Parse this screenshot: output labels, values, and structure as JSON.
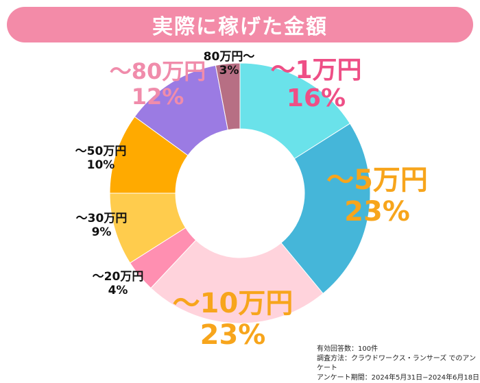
{
  "title": "実際に稼げた金額",
  "chart_data": {
    "type": "pie",
    "donut": true,
    "slices": [
      {
        "label": "～1万円",
        "value": 16,
        "value_label": "16%",
        "color": "#6ae2ea"
      },
      {
        "label": "～5万円",
        "value": 23,
        "value_label": "23%",
        "color": "#45b6d9"
      },
      {
        "label": "～10万円",
        "value": 23,
        "value_label": "23%",
        "color": "#ffd3dc"
      },
      {
        "label": "～20万円",
        "value": 4,
        "value_label": "4%",
        "color": "#ff8fb1"
      },
      {
        "label": "～30万円",
        "value": 9,
        "value_label": "9%",
        "color": "#ffcc4d"
      },
      {
        "label": "～50万円",
        "value": 10,
        "value_label": "10%",
        "color": "#ffaa00"
      },
      {
        "label": "～80万円",
        "value": 12,
        "value_label": "12%",
        "color": "#9b7be3"
      },
      {
        "label": "80万円～",
        "value": 3,
        "value_label": "3%",
        "color": "#b76f84"
      }
    ]
  },
  "footnote": {
    "line1": "有効回答数：100件",
    "line2": "調査方法：クラウドワークス・ランサーズ でのアンケート",
    "line3": "アンケート期間：2024年5月31日−2024年6月18日"
  }
}
